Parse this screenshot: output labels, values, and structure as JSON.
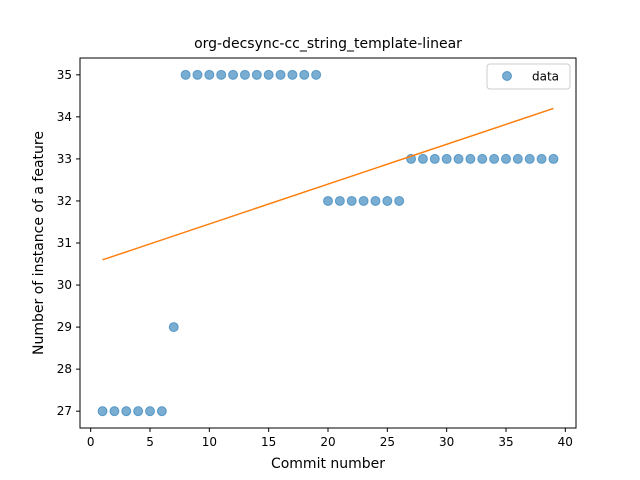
{
  "chart_data": {
    "type": "scatter",
    "title": "org-decsync-cc_string_template-linear",
    "xlabel": "Commit number",
    "ylabel": "Number of instance of a feature",
    "xlim": [
      -0.9,
      40.9
    ],
    "ylim": [
      26.6,
      35.4
    ],
    "xticks": [
      0,
      5,
      10,
      15,
      20,
      25,
      30,
      35,
      40
    ],
    "yticks": [
      27,
      28,
      29,
      30,
      31,
      32,
      33,
      34,
      35
    ],
    "legend_position": "top-right",
    "series": [
      {
        "name": "data",
        "kind": "scatter",
        "color": "#1f77b4",
        "x": [
          1,
          2,
          3,
          4,
          5,
          6,
          7,
          8,
          9,
          10,
          11,
          12,
          13,
          14,
          15,
          16,
          17,
          18,
          19,
          20,
          21,
          22,
          23,
          24,
          25,
          26,
          27,
          28,
          29,
          30,
          31,
          32,
          33,
          34,
          35,
          36,
          37,
          38,
          39
        ],
        "y": [
          27,
          27,
          27,
          27,
          27,
          27,
          29,
          35,
          35,
          35,
          35,
          35,
          35,
          35,
          35,
          35,
          35,
          35,
          35,
          32,
          32,
          32,
          32,
          32,
          32,
          32,
          33,
          33,
          33,
          33,
          33,
          33,
          33,
          33,
          33,
          33,
          33,
          33,
          33
        ]
      },
      {
        "kind": "line",
        "color": "#ff7f0e",
        "x": [
          1,
          39
        ],
        "y": [
          30.6,
          34.2
        ]
      }
    ]
  }
}
